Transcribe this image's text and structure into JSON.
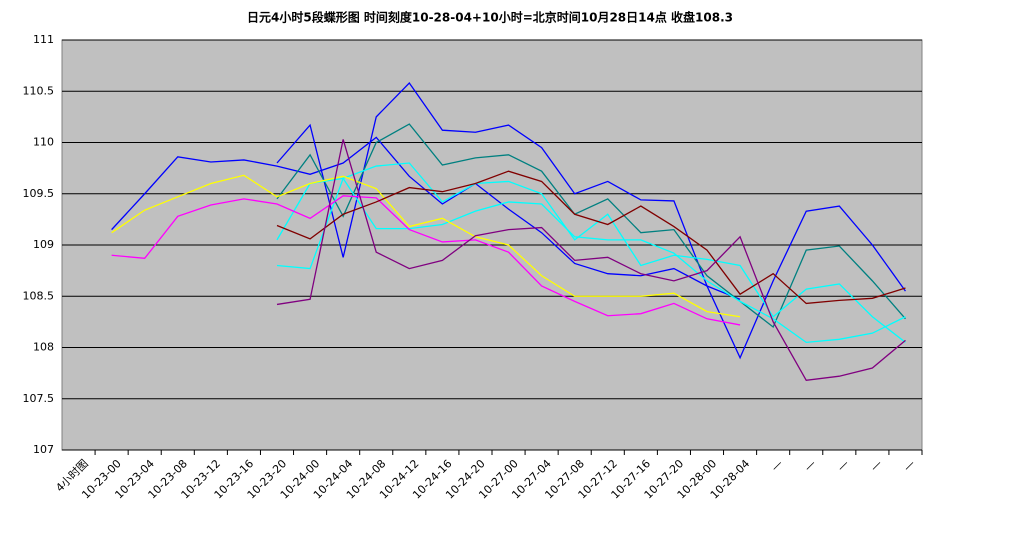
{
  "chart_data": {
    "type": "line",
    "title": "日元4小时5段蝶形图  时间刻度10-28-04+10小时=北京时间10月28日14点  收盘108.3",
    "categories": [
      "4小时图",
      "10-23-00",
      "10-23-04",
      "10-23-08",
      "10-23-12",
      "10-23-16",
      "10-23-20",
      "10-24-00",
      "10-24-04",
      "10-24-08",
      "10-24-12",
      "10-24-16",
      "10-24-20",
      "10-27-00",
      "10-27-04",
      "10-27-08",
      "10-27-12",
      "10-27-16",
      "10-27-20",
      "10-28-00",
      "10-28-04",
      "—",
      "—",
      "—",
      "—",
      "—"
    ],
    "ylim": [
      107,
      111
    ],
    "yticks": [
      107,
      107.5,
      108,
      108.5,
      109,
      109.5,
      110,
      110.5,
      111
    ],
    "grid": true,
    "series": [
      {
        "color": "#0000ff",
        "values": [
          null,
          109.15,
          109.5,
          109.86,
          109.81,
          109.83,
          109.77,
          109.69,
          109.8,
          110.05,
          109.67,
          109.4,
          109.6,
          109.35,
          109.12,
          108.82,
          108.72,
          108.7,
          108.77,
          108.6,
          108.47,
          null,
          null,
          null,
          null,
          null
        ]
      },
      {
        "color": "#0000ff",
        "values": [
          null,
          null,
          null,
          null,
          null,
          null,
          109.8,
          110.17,
          108.88,
          110.25,
          110.58,
          110.12,
          110.1,
          110.17,
          109.95,
          109.5,
          109.62,
          109.44,
          109.43,
          108.6,
          107.9,
          108.65,
          109.33,
          109.38,
          109.0,
          108.55
        ]
      },
      {
        "color": "#008080",
        "values": [
          null,
          null,
          null,
          null,
          null,
          null,
          109.45,
          109.88,
          109.28,
          110.0,
          110.18,
          109.78,
          109.85,
          109.88,
          109.72,
          109.3,
          109.45,
          109.12,
          109.15,
          108.7,
          108.45,
          108.2,
          108.95,
          108.99,
          108.65,
          108.28
        ]
      },
      {
        "color": "#00ffff",
        "values": [
          null,
          null,
          null,
          null,
          null,
          null,
          109.05,
          109.6,
          109.65,
          109.77,
          109.8,
          109.42,
          109.6,
          109.62,
          109.5,
          109.05,
          109.3,
          108.8,
          108.9,
          108.86,
          108.8,
          108.3,
          108.57,
          108.62,
          108.3,
          108.05
        ]
      },
      {
        "color": "#00ffff",
        "values": [
          null,
          null,
          null,
          null,
          null,
          null,
          108.8,
          108.77,
          109.65,
          109.16,
          109.16,
          109.2,
          109.33,
          109.42,
          109.4,
          109.08,
          109.05,
          109.05,
          108.92,
          108.65,
          108.45,
          108.28,
          108.05,
          108.08,
          108.14,
          108.3
        ]
      },
      {
        "color": "#ffff00",
        "values": [
          null,
          109.12,
          109.34,
          109.47,
          109.6,
          109.68,
          109.47,
          109.6,
          109.67,
          109.55,
          109.18,
          109.26,
          109.08,
          109.0,
          108.7,
          108.5,
          108.5,
          108.5,
          108.53,
          108.35,
          108.3,
          null,
          null,
          null,
          null,
          null
        ]
      },
      {
        "color": "#ff00ff",
        "values": [
          null,
          108.9,
          108.87,
          109.28,
          109.39,
          109.45,
          109.4,
          109.26,
          109.48,
          109.46,
          109.15,
          109.03,
          109.05,
          108.93,
          108.6,
          108.45,
          108.31,
          108.33,
          108.43,
          108.28,
          108.22,
          null,
          null,
          null,
          null,
          null
        ]
      },
      {
        "color": "#800000",
        "values": [
          null,
          null,
          null,
          null,
          null,
          null,
          109.19,
          109.06,
          109.3,
          109.42,
          109.56,
          109.52,
          109.6,
          109.72,
          109.62,
          109.3,
          109.2,
          109.38,
          109.18,
          108.95,
          108.52,
          108.72,
          108.43,
          108.46,
          108.48,
          108.58
        ]
      },
      {
        "color": "#800080",
        "values": [
          null,
          null,
          null,
          null,
          null,
          null,
          108.42,
          108.47,
          110.03,
          108.93,
          108.77,
          108.85,
          109.09,
          109.15,
          109.17,
          108.85,
          108.88,
          108.72,
          108.65,
          108.75,
          109.08,
          108.25,
          107.68,
          107.72,
          107.8,
          108.07
        ]
      }
    ]
  }
}
